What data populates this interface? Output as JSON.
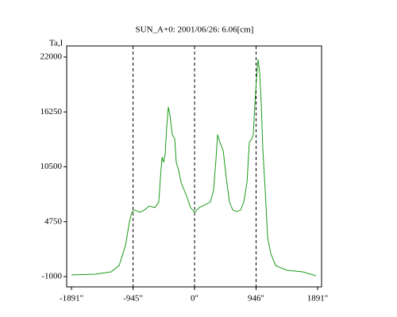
{
  "chart_data": {
    "type": "line",
    "title": "SUN_A+0: 2001/06/26: 6.06[cm]",
    "y_label": "Ta,I",
    "x": [
      -1891,
      -1525,
      -1281,
      -1159,
      -1062,
      -1001,
      -964,
      -915,
      -842,
      -769,
      -696,
      -610,
      -549,
      -525,
      -500,
      -476,
      -452,
      -427,
      -403,
      -379,
      -342,
      -305,
      -281,
      -244,
      -208,
      -159,
      -110,
      -61,
      0,
      73,
      170,
      244,
      293,
      330,
      354,
      391,
      440,
      488,
      537,
      586,
      647,
      708,
      757,
      806,
      842,
      879,
      903,
      928,
      952,
      976,
      1001,
      1025,
      1050,
      1086,
      1123,
      1171,
      1245,
      1416,
      1660,
      1866
    ],
    "series": [
      {
        "name": "Ta,I",
        "color": "#1a9a1a",
        "values": [
          -830,
          -750,
          -500,
          170,
          2240,
          4730,
          5730,
          5980,
          5730,
          5980,
          6390,
          6230,
          6810,
          9300,
          11540,
          10960,
          11790,
          14700,
          16770,
          15940,
          13870,
          13450,
          10960,
          10130,
          8880,
          8050,
          7220,
          6230,
          5730,
          6230,
          6560,
          6810,
          8050,
          11370,
          13870,
          13040,
          12200,
          9300,
          6810,
          5980,
          5810,
          5980,
          6810,
          8880,
          13040,
          13450,
          13870,
          17190,
          19680,
          21760,
          20340,
          17190,
          12200,
          8050,
          3070,
          1410,
          160,
          -340,
          -500,
          -920
        ]
      }
    ],
    "xlim": [
      -1965,
      1952
    ],
    "ylim": [
      -2080,
      23160
    ],
    "xticks": [
      {
        "value": -1891,
        "label": "-1891\""
      },
      {
        "value": -945,
        "label": "-945\""
      },
      {
        "value": 0,
        "label": "0\""
      },
      {
        "value": 946,
        "label": "946\""
      },
      {
        "value": 1891,
        "label": "1891\""
      }
    ],
    "yticks": [
      -1000,
      4750,
      10500,
      16250,
      22000
    ]
  }
}
